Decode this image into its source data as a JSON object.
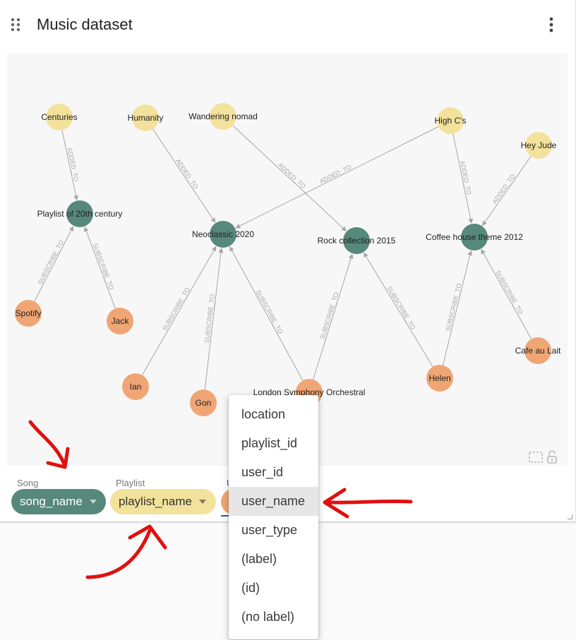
{
  "app": {
    "title": "Music dataset"
  },
  "graph": {
    "colors": {
      "song": "#f3e29b",
      "playlist": "#56887c",
      "user": "#f0a674",
      "edge": "#a6a6a6",
      "edge_label": "#a8a8a8"
    },
    "nodes": [
      {
        "id": "centuries",
        "label": "Centuries",
        "type": "song"
      },
      {
        "id": "humanity",
        "label": "Humanity",
        "type": "song"
      },
      {
        "id": "wandering",
        "label": "Wandering nomad",
        "type": "song"
      },
      {
        "id": "highcs",
        "label": "High C's",
        "type": "song"
      },
      {
        "id": "heyjude",
        "label": "Hey Jude",
        "type": "song"
      },
      {
        "id": "pl20",
        "label": "Playlist of 20th century",
        "type": "playlist"
      },
      {
        "id": "neo",
        "label": "Neoclassic 2020",
        "type": "playlist"
      },
      {
        "id": "rock",
        "label": "Rock collection 2015",
        "type": "playlist"
      },
      {
        "id": "coffee",
        "label": "Coffee house theme 2012",
        "type": "playlist"
      },
      {
        "id": "spotify",
        "label": "Spotify",
        "type": "user"
      },
      {
        "id": "jack",
        "label": "Jack",
        "type": "user"
      },
      {
        "id": "ian",
        "label": "Ian",
        "type": "user"
      },
      {
        "id": "gon",
        "label": "Gon",
        "type": "user"
      },
      {
        "id": "lso",
        "label": "London Symphony Orchestral",
        "type": "user"
      },
      {
        "id": "helen",
        "label": "Helen",
        "type": "user"
      },
      {
        "id": "cafe",
        "label": "Cafe au Lait",
        "type": "user"
      }
    ],
    "edges": [
      {
        "from": "centuries",
        "to": "pl20",
        "label": "ADDED_TO"
      },
      {
        "from": "humanity",
        "to": "neo",
        "label": "ADDED_TO"
      },
      {
        "from": "wandering",
        "to": "rock",
        "label": "ADDED_TO"
      },
      {
        "from": "highcs",
        "to": "neo",
        "label": "ADDED_TO"
      },
      {
        "from": "highcs",
        "to": "coffee",
        "label": "ADDED_TO"
      },
      {
        "from": "heyjude",
        "to": "coffee",
        "label": "ADDED_TO"
      },
      {
        "from": "spotify",
        "to": "pl20",
        "label": "SUBSCRIBE_TO"
      },
      {
        "from": "jack",
        "to": "pl20",
        "label": "SUBSCRIBE_TO"
      },
      {
        "from": "ian",
        "to": "neo",
        "label": "SUBSCRIBE_TO"
      },
      {
        "from": "gon",
        "to": "neo",
        "label": "SUBSCRIBE_TO"
      },
      {
        "from": "lso",
        "to": "neo",
        "label": "SUBSCRIBE_TO"
      },
      {
        "from": "lso",
        "to": "rock",
        "label": "SUBSCRIBE_TO"
      },
      {
        "from": "helen",
        "to": "rock",
        "label": "SUBSCRIBE_TO"
      },
      {
        "from": "helen",
        "to": "coffee",
        "label": "SUBSCRIBE_TO"
      },
      {
        "from": "cafe",
        "to": "coffee",
        "label": "SUBSCRIBE_TO"
      }
    ]
  },
  "selectors": {
    "song": {
      "label": "Song",
      "value": "song_name"
    },
    "playlist": {
      "label": "Playlist",
      "value": "playlist_name"
    },
    "user": {
      "label": "U"
    }
  },
  "dropdown": {
    "options": [
      "location",
      "playlist_id",
      "user_id",
      "user_name",
      "user_type",
      "(label)",
      "(id)",
      "(no label)"
    ],
    "highlighted": "user_name"
  },
  "annotations": {
    "arrow_color": "#e01010"
  }
}
